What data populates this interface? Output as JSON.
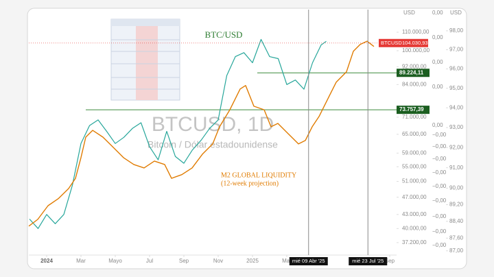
{
  "chart_data": {
    "type": "line",
    "title": "BTC/USD",
    "watermark": "BTCUSD, 1D",
    "watermark_subtitle": "Bitcoin / Dólar estadounidense",
    "annotation": [
      "M2 GLOBAL LIQUIDITY",
      "(12-week projection)"
    ],
    "axis_units": [
      "USD",
      "USD"
    ],
    "xlim": [
      -1.04,
      20.4
    ],
    "xticks": [
      {
        "value": 0,
        "label": "2024"
      },
      {
        "value": 2,
        "label": "Mar"
      },
      {
        "value": 4,
        "label": "Mayo"
      },
      {
        "value": 6,
        "label": "Jul"
      },
      {
        "value": 8,
        "label": "Sep"
      },
      {
        "value": 10,
        "label": "Nov"
      },
      {
        "value": 12,
        "label": "2025"
      },
      {
        "value": 14,
        "label": "Mar"
      },
      {
        "value": 20,
        "label": "Sep"
      }
    ],
    "ylog": true,
    "ylim": [
      34890,
      123600
    ],
    "yticks": [
      {
        "value": 110000,
        "label": "110.000,00"
      },
      {
        "value": 100000,
        "label": "100.000,00"
      },
      {
        "value": 92000,
        "label": "92.000,00"
      },
      {
        "value": 84000,
        "label": "84.000,00"
      },
      {
        "value": 71000,
        "label": "71.000,00"
      },
      {
        "value": 65000,
        "label": "65.000,00"
      },
      {
        "value": 59000,
        "label": "59.000,00"
      },
      {
        "value": 55000,
        "label": "55.000,00"
      },
      {
        "value": 51000,
        "label": "51.000,00"
      },
      {
        "value": 47000,
        "label": "47.000,00"
      },
      {
        "value": 43000,
        "label": "43.000,00"
      },
      {
        "value": 40000,
        "label": "40.000,00"
      },
      {
        "value": 37200,
        "label": "37.200,00"
      }
    ],
    "y2log": true,
    "y2lim": [
      86.8,
      99.13
    ],
    "y2ticks": [
      {
        "value": 98,
        "label": "98,00"
      },
      {
        "value": 97,
        "label": "97,00"
      },
      {
        "value": 96,
        "label": "96,00"
      },
      {
        "value": 95,
        "label": "95,00"
      },
      {
        "value": 94,
        "label": "94,00"
      },
      {
        "value": 93,
        "label": "93,00"
      },
      {
        "value": 92,
        "label": "92,00"
      },
      {
        "value": 91,
        "label": "91,00"
      },
      {
        "value": 90,
        "label": "90,00"
      },
      {
        "value": 89.2,
        "label": "89,20"
      },
      {
        "value": 88.4,
        "label": "88,40"
      },
      {
        "value": 87.6,
        "label": "87,60"
      },
      {
        "value": 87,
        "label": "87,00"
      }
    ],
    "aux_axis_labels": [
      "0,00",
      "0,00",
      "0,00",
      "0,00",
      "0,00",
      "−0,00",
      "−0,00",
      "−0,00",
      "−0,00",
      "−0,00",
      "−0,00",
      "−0,00",
      "−0,00",
      "−0,00"
    ],
    "series": [
      {
        "color": "#26a69a",
        "x": [
          -1,
          -0.5,
          0,
          0.5,
          1,
          1.5,
          2,
          2.5,
          3,
          3.5,
          4,
          4.5,
          5,
          5.5,
          6,
          6.5,
          7,
          7.5,
          8,
          8.5,
          9,
          9.5,
          10,
          10.5,
          11,
          11.5,
          12,
          12.5,
          13,
          13.5,
          14,
          14.5,
          15,
          15.5,
          16,
          16.3
        ],
        "values": [
          42000,
          40000,
          43000,
          41000,
          43000,
          50000,
          62000,
          68000,
          70000,
          66000,
          62000,
          64000,
          67000,
          69000,
          61000,
          57000,
          66000,
          58000,
          56000,
          60000,
          63000,
          67000,
          70000,
          88000,
          97000,
          99000,
          94000,
          106000,
          97000,
          96000,
          84000,
          86000,
          82000,
          94000,
          103000,
          105000
        ]
      },
      {
        "color": "#e07b00",
        "axis": "y2",
        "x": [
          -1.04,
          -0.52,
          0.08,
          0.68,
          1.28,
          1.68,
          2.0,
          2.28,
          2.68,
          3.28,
          3.88,
          4.48,
          5.08,
          5.68,
          6.28,
          6.88,
          7.28,
          7.88,
          8.48,
          9.08,
          9.68,
          10.08,
          10.68,
          11.28,
          11.6,
          12.08,
          12.68,
          13.08,
          13.48,
          14.08,
          14.68,
          15.08,
          15.48,
          15.88,
          16.48,
          16.88,
          17.48,
          17.88,
          18.28,
          18.68,
          19.08
        ],
        "values": [
          88.17,
          88.49,
          89.15,
          89.49,
          89.98,
          90.48,
          91.5,
          92.52,
          92.86,
          92.52,
          92.01,
          91.5,
          91.16,
          90.99,
          91.33,
          91.16,
          90.48,
          90.66,
          90.99,
          91.67,
          92.18,
          93.04,
          93.9,
          94.96,
          95.14,
          94.08,
          93.9,
          93.04,
          93.21,
          92.69,
          92.18,
          92.35,
          93.04,
          93.56,
          94.61,
          95.31,
          95.85,
          96.92,
          97.28,
          97.45,
          97.17
        ]
      }
    ],
    "price_badge": {
      "name": "BTCUSD",
      "value": 104030.93,
      "label": "104.030,93",
      "color": "#e53935"
    },
    "levels": [
      {
        "value": 89224.11,
        "label": "89.224,11",
        "x_start": 12.28,
        "color": "#1b5e20"
      },
      {
        "value": 73757.39,
        "label": "73.757,39",
        "x_start": 2.28,
        "color": "#1b5e20"
      }
    ],
    "vlines": [
      {
        "x": 15.27,
        "label": "mié 09 Abr '25"
      },
      {
        "x": 18.73,
        "label": "mié 23 Jul '25"
      }
    ]
  }
}
